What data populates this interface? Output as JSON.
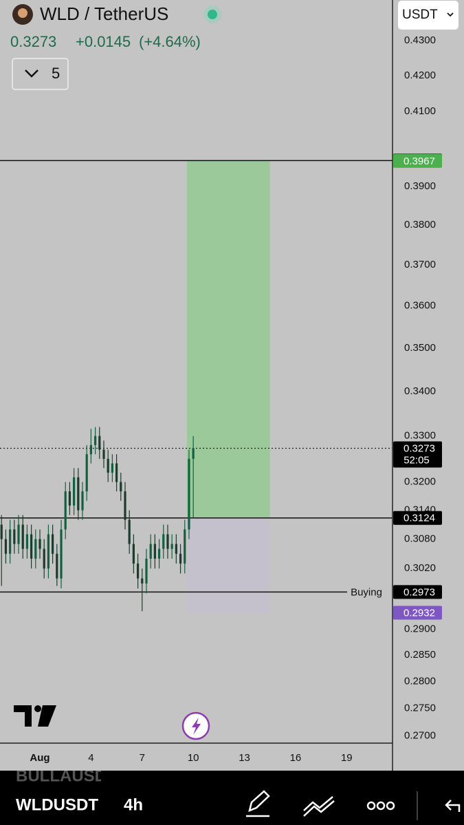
{
  "header": {
    "title": "WLD / TetherUS",
    "price": "0.3273",
    "change": "+0.0145",
    "change_pct": "(+4.64%)",
    "interval_count": "5",
    "currency": "USDT"
  },
  "chart_data": {
    "type": "candlestick",
    "y_scale": "log",
    "up_color": "#12603f",
    "down_color": "#1c3b2d",
    "x": [
      -1.25,
      -1,
      -0.75,
      -0.5,
      -0.25,
      0,
      0.25,
      0.5,
      0.75,
      1,
      1.25,
      1.5,
      1.75,
      2,
      2.25,
      2.5,
      2.75,
      3,
      3.25,
      3.5,
      3.75,
      4,
      4.25,
      4.5,
      4.75,
      5,
      5.25,
      5.5,
      5.75,
      6,
      6.25,
      6.5,
      6.75,
      7,
      7.25,
      7.5,
      7.75,
      8,
      8.25,
      8.5,
      8.75,
      9,
      9.25,
      9.5,
      9.75,
      10
    ],
    "open": [
      0.311,
      0.308,
      0.305,
      0.31,
      0.307,
      0.311,
      0.306,
      0.309,
      0.304,
      0.308,
      0.306,
      0.302,
      0.309,
      0.305,
      0.3,
      0.31,
      0.318,
      0.315,
      0.321,
      0.314,
      0.318,
      0.326,
      0.328,
      0.33,
      0.327,
      0.325,
      0.322,
      0.324,
      0.32,
      0.318,
      0.312,
      0.307,
      0.303,
      0.3,
      0.299,
      0.304,
      0.307,
      0.304,
      0.306,
      0.309,
      0.306,
      0.307,
      0.305,
      0.303,
      0.31,
      0.325
    ],
    "high": [
      0.313,
      0.31,
      0.312,
      0.312,
      0.313,
      0.313,
      0.311,
      0.311,
      0.31,
      0.31,
      0.308,
      0.311,
      0.311,
      0.307,
      0.312,
      0.32,
      0.32,
      0.323,
      0.323,
      0.32,
      0.328,
      0.3316,
      0.332,
      0.332,
      0.329,
      0.327,
      0.326,
      0.326,
      0.322,
      0.32,
      0.314,
      0.309,
      0.305,
      0.302,
      0.306,
      0.309,
      0.309,
      0.308,
      0.311,
      0.311,
      0.309,
      0.309,
      0.307,
      0.312,
      0.327,
      0.33
    ],
    "low": [
      0.2985,
      0.303,
      0.303,
      0.305,
      0.305,
      0.304,
      0.304,
      0.302,
      0.302,
      0.304,
      0.3,
      0.3,
      0.303,
      0.2985,
      0.298,
      0.308,
      0.313,
      0.313,
      0.312,
      0.312,
      0.316,
      0.324,
      0.326,
      0.325,
      0.323,
      0.32,
      0.32,
      0.318,
      0.316,
      0.31,
      0.305,
      0.301,
      0.298,
      0.2935,
      0.297,
      0.302,
      0.302,
      0.302,
      0.304,
      0.304,
      0.304,
      0.303,
      0.301,
      0.301,
      0.308,
      0.3124
    ],
    "close": [
      0.308,
      0.305,
      0.31,
      0.307,
      0.311,
      0.306,
      0.309,
      0.304,
      0.308,
      0.306,
      0.302,
      0.309,
      0.305,
      0.3,
      0.31,
      0.318,
      0.315,
      0.321,
      0.314,
      0.318,
      0.326,
      0.328,
      0.33,
      0.327,
      0.325,
      0.322,
      0.324,
      0.32,
      0.318,
      0.312,
      0.307,
      0.303,
      0.3,
      0.299,
      0.304,
      0.307,
      0.304,
      0.306,
      0.309,
      0.306,
      0.307,
      0.305,
      0.303,
      0.31,
      0.325,
      0.3273
    ],
    "xlim": [
      -1.34,
      21.65
    ],
    "xticks": [
      {
        "value": 1,
        "label": "Aug"
      },
      4,
      7,
      10,
      13,
      16,
      19
    ],
    "ylim": [
      0.2687,
      0.4418
    ],
    "yticks": [
      {
        "value": 0.43,
        "label": "0.4300"
      },
      {
        "value": 0.42,
        "label": "0.4200"
      },
      {
        "value": 0.41,
        "label": "0.4100"
      },
      {
        "value": 0.39,
        "label": "0.3900"
      },
      {
        "value": 0.38,
        "label": "0.3800"
      },
      {
        "value": 0.37,
        "label": "0.3700"
      },
      {
        "value": 0.36,
        "label": "0.3600"
      },
      {
        "value": 0.35,
        "label": "0.3500"
      },
      {
        "value": 0.34,
        "label": "0.3400"
      },
      {
        "value": 0.33,
        "label": "0.3300"
      },
      {
        "value": 0.32,
        "label": "0.3200"
      },
      {
        "value": 0.314,
        "label": "0.3140"
      },
      {
        "value": 0.308,
        "label": "0.3080"
      },
      {
        "value": 0.302,
        "label": "0.3020"
      },
      {
        "value": 0.29,
        "label": "0.2900"
      },
      {
        "value": 0.285,
        "label": "0.2850"
      },
      {
        "value": 0.28,
        "label": "0.2800"
      },
      {
        "value": 0.275,
        "label": "0.2750"
      },
      {
        "value": 0.27,
        "label": "0.2700"
      }
    ],
    "position": {
      "entry": 0.3124,
      "target": 0.3967,
      "stop": 0.2932,
      "x_start": 9.63,
      "x_end": 14.5,
      "target_color": "#8fcb8c",
      "stop_color": "#c6c0cf"
    },
    "lines": [
      {
        "value": 0.3968
      },
      {
        "value": 0.3124
      },
      {
        "value": 0.2973,
        "label": "Buying"
      }
    ],
    "last_price": 0.3273,
    "countdown": "52:05",
    "price_tags": [
      {
        "value": 0.3968,
        "color": "#000000"
      },
      {
        "value": 0.3967,
        "color": "#4caf50"
      },
      {
        "value": 0.3124,
        "color": "#8a8a8a"
      },
      {
        "value": 0.3124,
        "color": "#000000"
      },
      {
        "value": 0.2973,
        "color": "#000000"
      },
      {
        "value": 0.2932,
        "color": "#7e57c2"
      }
    ]
  },
  "toolbar": {
    "symbol": "WLDUSDT",
    "interval": "4h",
    "hidden_symbol": "BULLAUSDT"
  }
}
